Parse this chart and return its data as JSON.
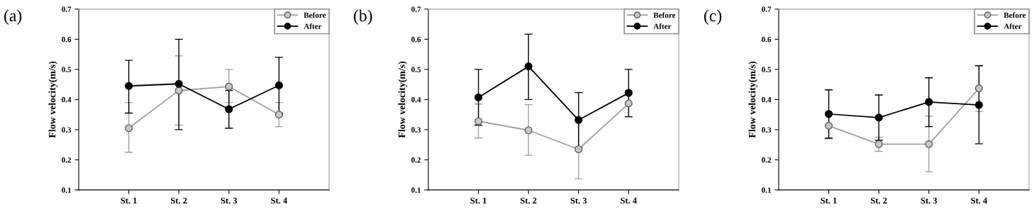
{
  "chart_data": [
    {
      "type": "line",
      "title": "(a)",
      "ylabel": "Flow velocity(m/s)",
      "categories": [
        "St. 1",
        "St. 2",
        "St. 3",
        "St. 4"
      ],
      "ylim": [
        0.1,
        0.7
      ],
      "yticks": [
        0.1,
        0.2,
        0.3,
        0.4,
        0.5,
        0.6,
        0.7
      ],
      "legend": "top right",
      "marker": "circle",
      "grid": false,
      "series": [
        {
          "name": "Before",
          "color": "#a0a0a0",
          "values": [
            0.305,
            0.43,
            0.443,
            0.35
          ],
          "errors": [
            [
              0.225,
              0.39
            ],
            [
              0.315,
              0.545
            ],
            [
              0.39,
              0.5
            ],
            [
              0.31,
              0.39
            ]
          ]
        },
        {
          "name": "After",
          "color": "#000000",
          "values": [
            0.445,
            0.452,
            0.368,
            0.447
          ],
          "errors": [
            [
              0.355,
              0.53
            ],
            [
              0.3,
              0.6
            ],
            [
              0.305,
              0.43
            ],
            [
              0.355,
              0.54
            ]
          ]
        }
      ]
    },
    {
      "type": "line",
      "title": "(b)",
      "ylabel": "Flow velocity(m/s)",
      "categories": [
        "St. 1",
        "St. 2",
        "St. 3",
        "St. 4"
      ],
      "ylim": [
        0.1,
        0.7
      ],
      "yticks": [
        0.1,
        0.2,
        0.3,
        0.4,
        0.5,
        0.6,
        0.7
      ],
      "legend": "top right",
      "marker": "circle",
      "grid": false,
      "series": [
        {
          "name": "Before",
          "color": "#a0a0a0",
          "values": [
            0.328,
            0.298,
            0.235,
            0.387
          ],
          "errors": [
            [
              0.272,
              0.385
            ],
            [
              0.215,
              0.383
            ],
            [
              0.137,
              0.33
            ],
            [
              0.343,
              0.43
            ]
          ]
        },
        {
          "name": "After",
          "color": "#000000",
          "values": [
            0.407,
            0.51,
            0.332,
            0.422
          ],
          "errors": [
            [
              0.315,
              0.5
            ],
            [
              0.4,
              0.617
            ],
            [
              0.24,
              0.423
            ],
            [
              0.343,
              0.5
            ]
          ]
        }
      ]
    },
    {
      "type": "line",
      "title": "(c)",
      "ylabel": "Flow velocity(m/s)",
      "categories": [
        "St. 1",
        "St. 2",
        "St. 3",
        "St. 4"
      ],
      "ylim": [
        0.1,
        0.7
      ],
      "yticks": [
        0.1,
        0.2,
        0.3,
        0.4,
        0.5,
        0.6,
        0.7
      ],
      "legend": "top right",
      "marker": "circle",
      "grid": false,
      "series": [
        {
          "name": "Before",
          "color": "#a0a0a0",
          "values": [
            0.313,
            0.252,
            0.252,
            0.437
          ],
          "errors": [
            [
              0.27,
              0.355
            ],
            [
              0.228,
              0.275
            ],
            [
              0.16,
              0.345
            ],
            [
              0.36,
              0.513
            ]
          ]
        },
        {
          "name": "After",
          "color": "#000000",
          "values": [
            0.352,
            0.34,
            0.392,
            0.382
          ],
          "errors": [
            [
              0.272,
              0.432
            ],
            [
              0.265,
              0.415
            ],
            [
              0.31,
              0.472
            ],
            [
              0.253,
              0.512
            ]
          ]
        }
      ]
    }
  ]
}
